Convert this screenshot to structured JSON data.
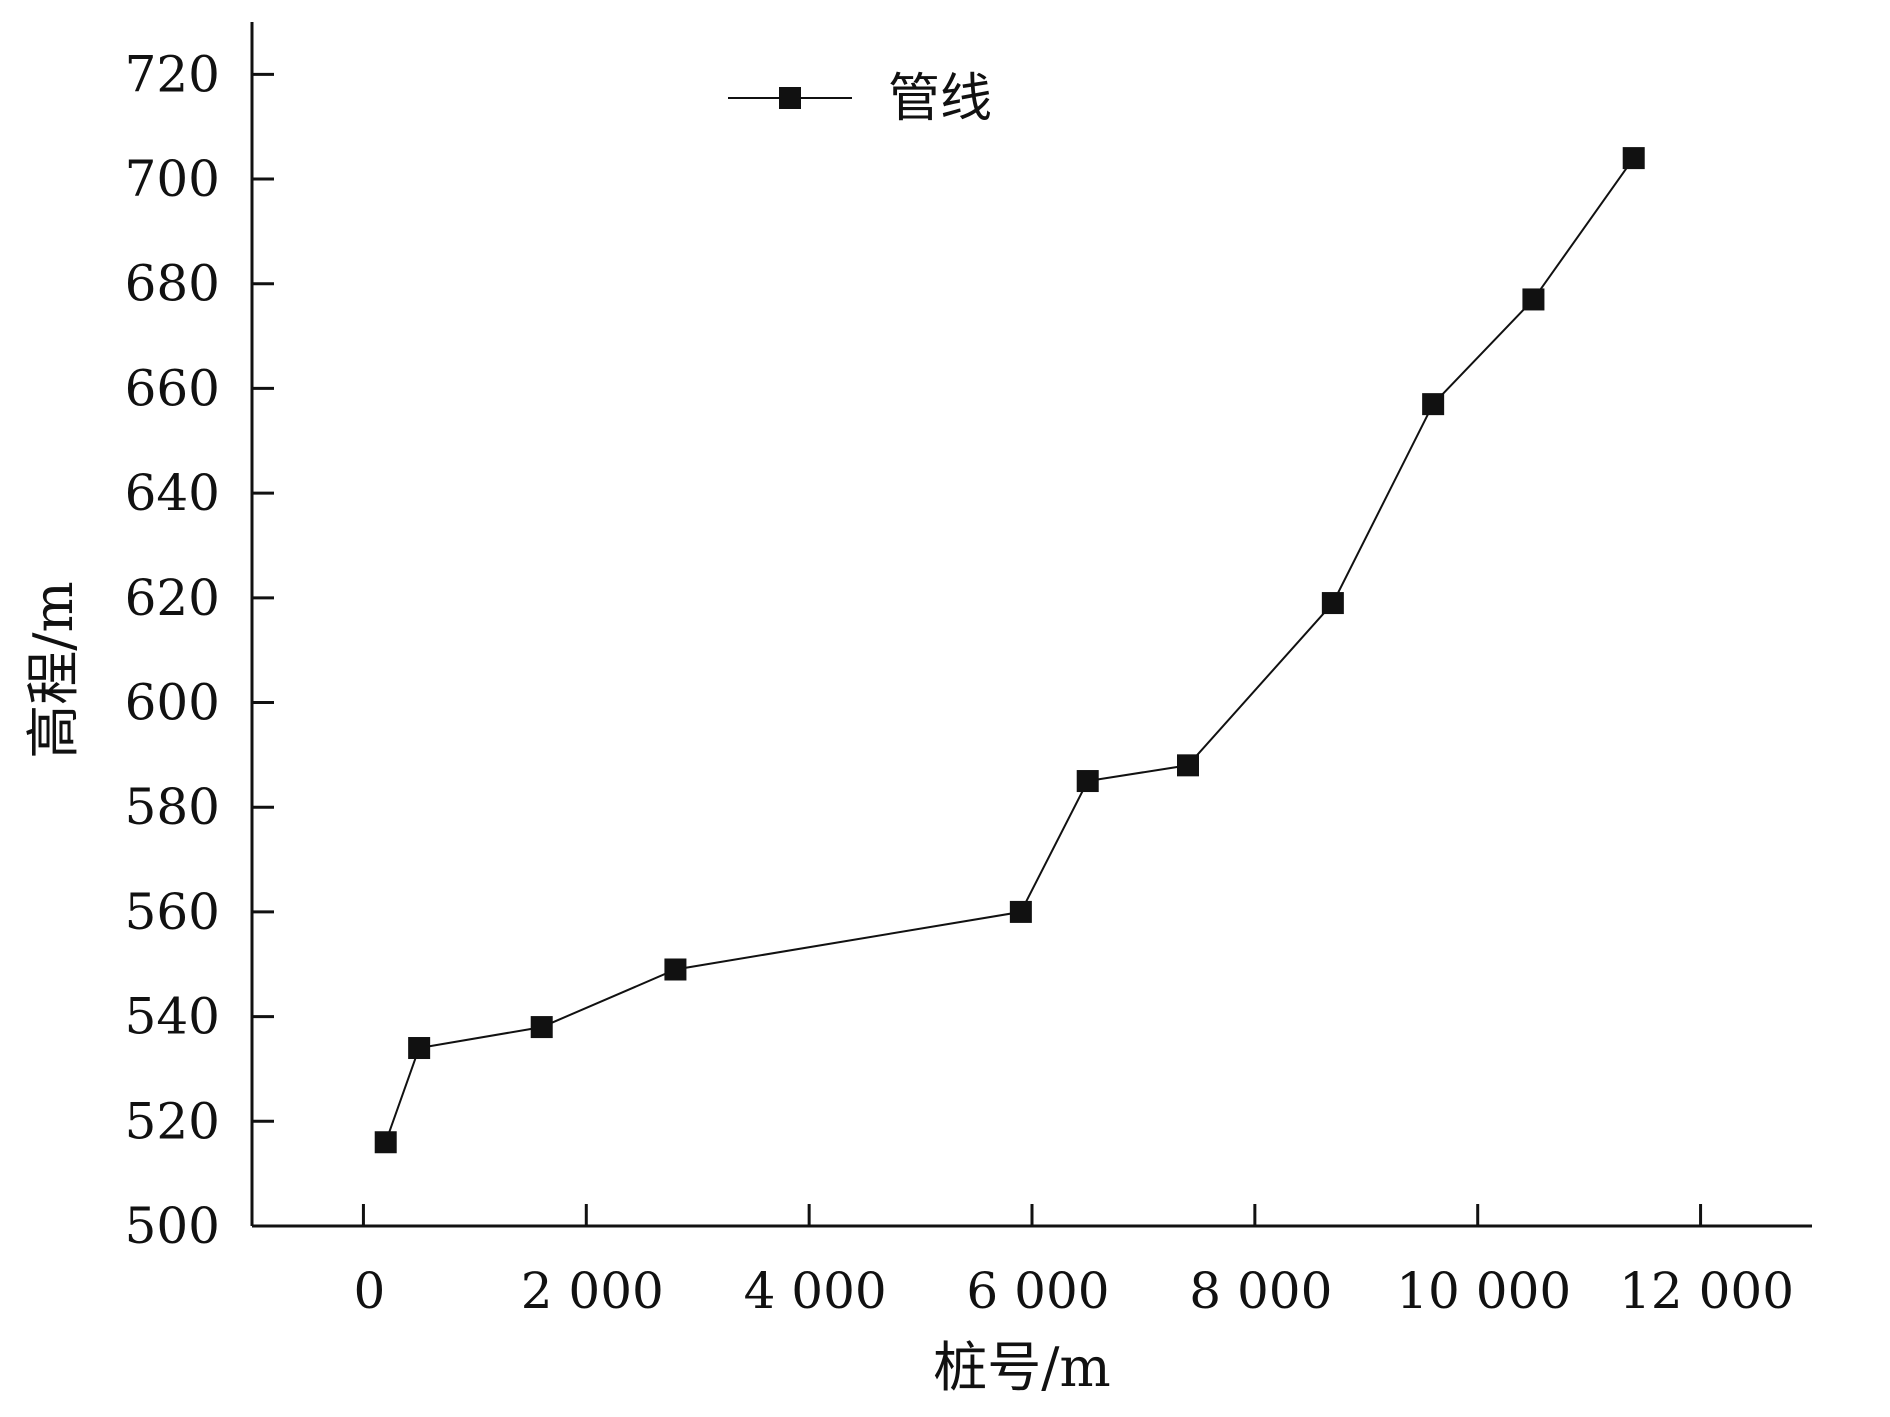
{
  "chart_data": {
    "type": "line",
    "xlabel": "桩号/m",
    "ylabel": "高程/m",
    "xlim": [
      -1000,
      13000
    ],
    "ylim": [
      500,
      730
    ],
    "x_ticks": [
      0,
      2000,
      4000,
      6000,
      8000,
      10000,
      12000
    ],
    "x_tick_labels": [
      "0",
      "2 000",
      "4 000",
      "6 000",
      "8 000",
      "10 000",
      "12 000"
    ],
    "y_ticks": [
      500,
      520,
      540,
      560,
      580,
      600,
      620,
      640,
      660,
      680,
      700,
      720
    ],
    "y_tick_labels": [
      "500",
      "520",
      "540",
      "560",
      "580",
      "600",
      "620",
      "640",
      "660",
      "680",
      "700",
      "720"
    ],
    "grid": false,
    "legend_position": "top-center",
    "series": [
      {
        "name": "管线",
        "color": "#111111",
        "marker": "square",
        "x": [
          200,
          500,
          1600,
          2800,
          5900,
          6500,
          7400,
          8700,
          9600,
          10500,
          11400
        ],
        "y": [
          516,
          534,
          538,
          549,
          560,
          585,
          588,
          619,
          657,
          677,
          704
        ]
      }
    ]
  }
}
